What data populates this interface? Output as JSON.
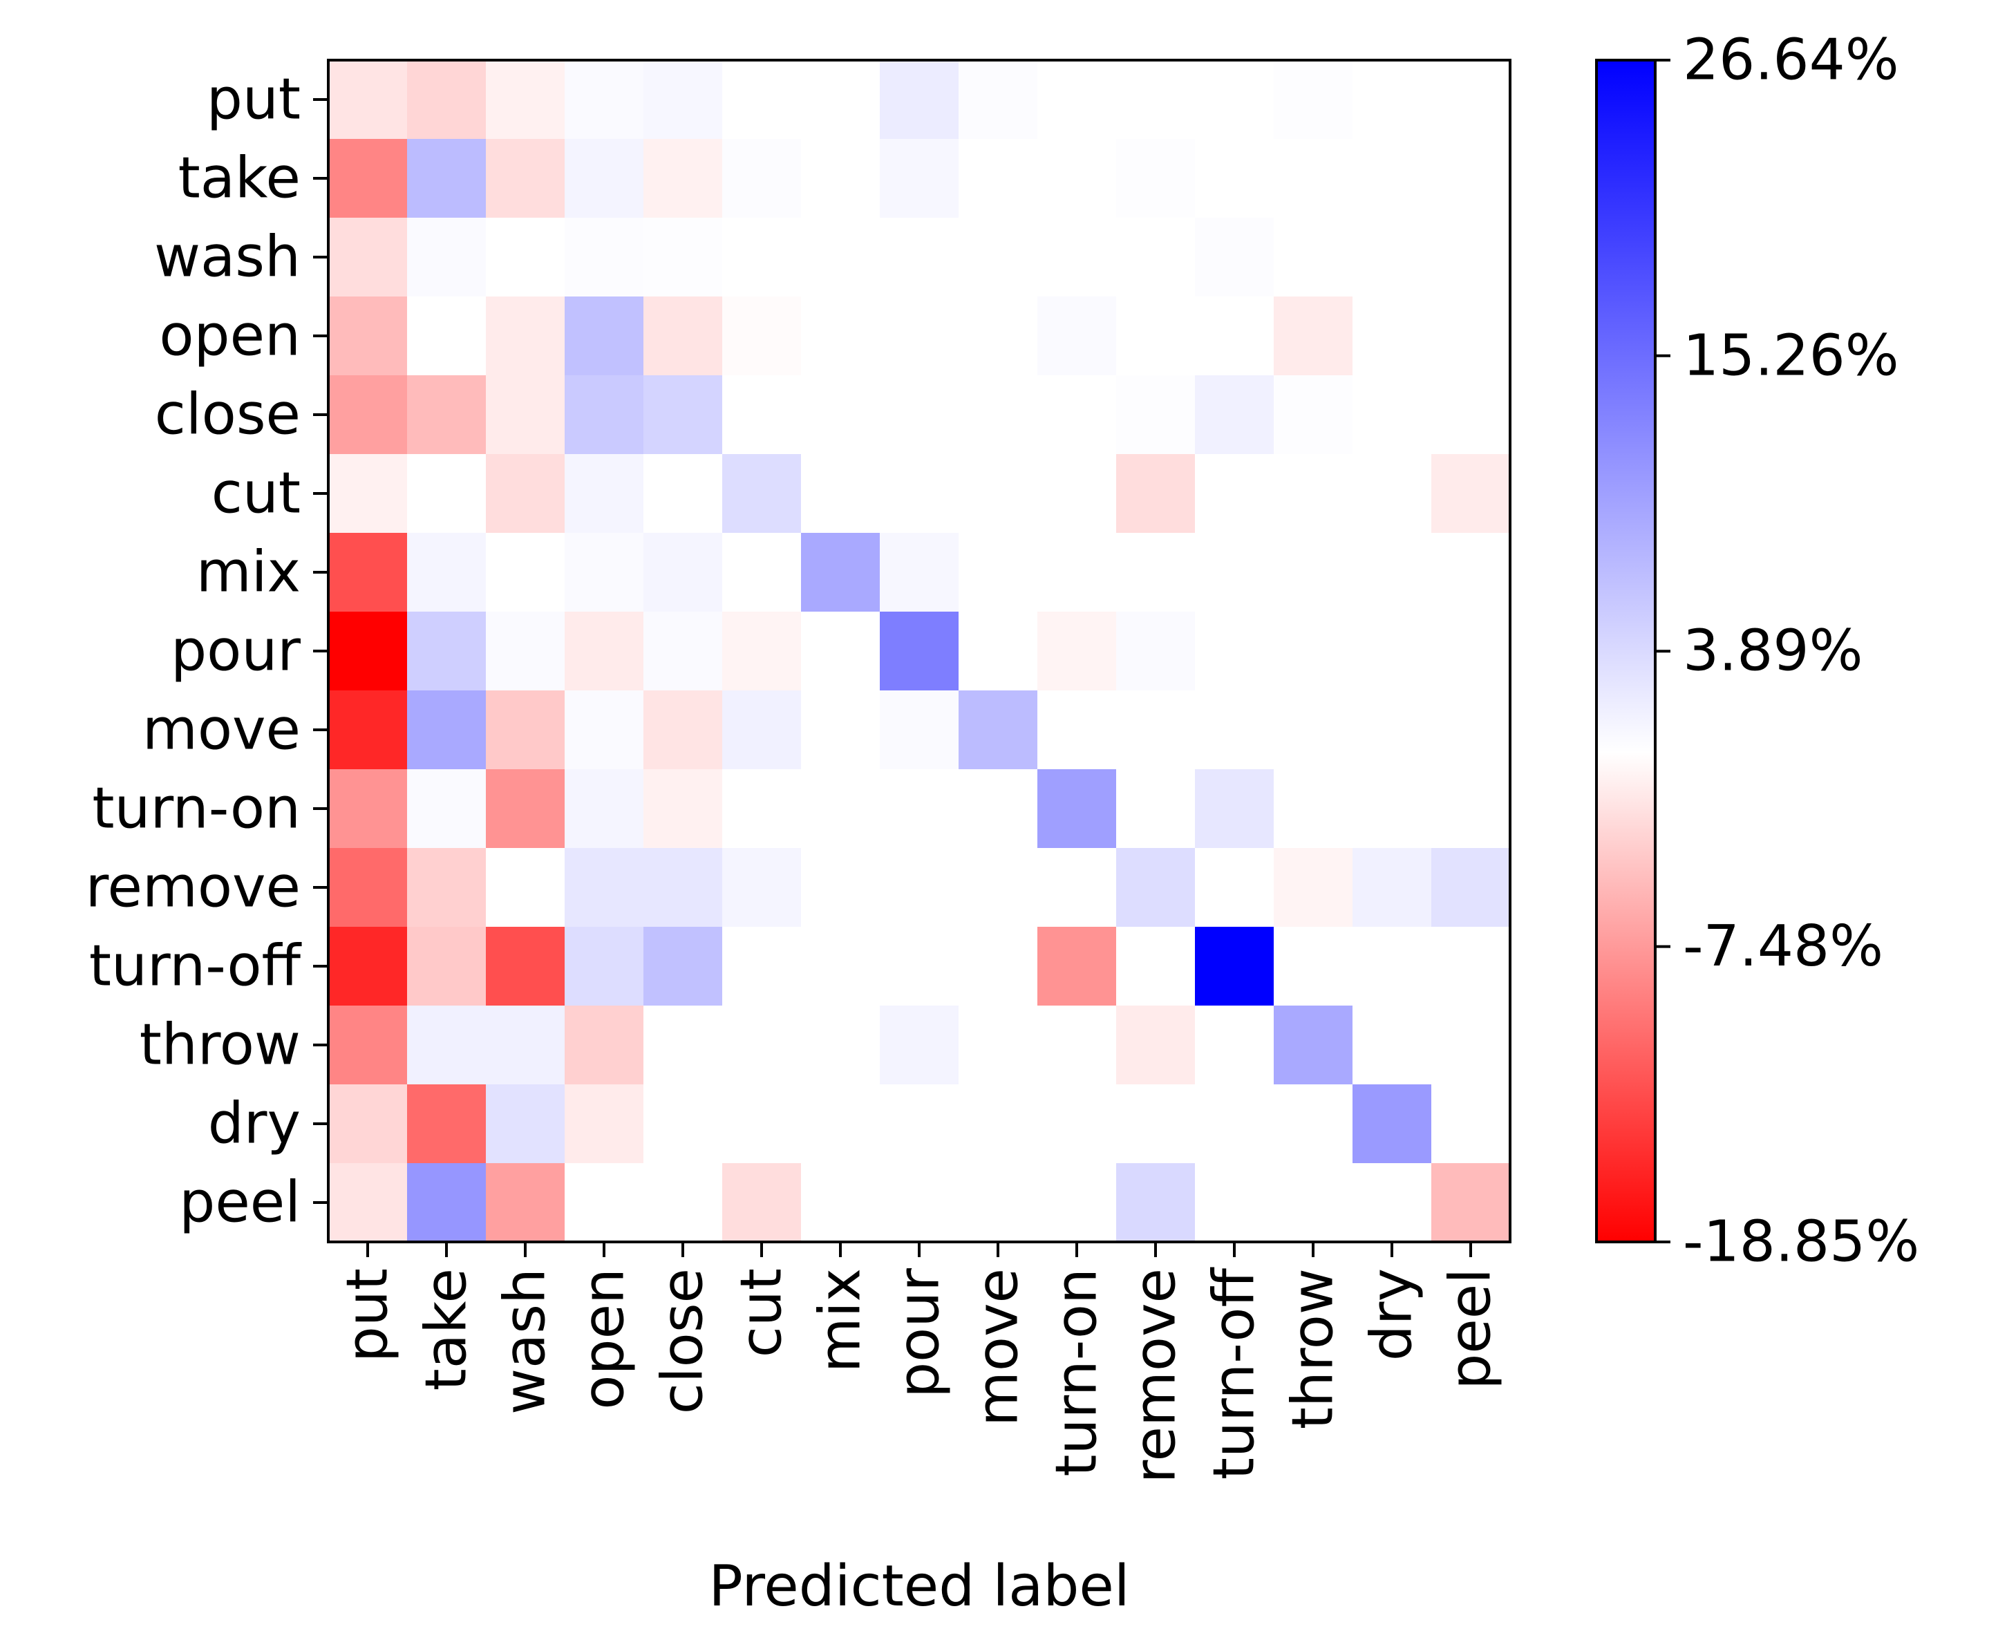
{
  "chart_data": {
    "type": "heatmap",
    "title": "",
    "xlabel": "Predicted label",
    "ylabel": "",
    "x_categories": [
      "put",
      "take",
      "wash",
      "open",
      "close",
      "cut",
      "mix",
      "pour",
      "move",
      "turn-on",
      "remove",
      "turn-off",
      "throw",
      "dry",
      "peel"
    ],
    "y_categories": [
      "put",
      "take",
      "wash",
      "open",
      "close",
      "cut",
      "mix",
      "pour",
      "move",
      "turn-on",
      "remove",
      "turn-off",
      "throw",
      "dry",
      "peel"
    ],
    "value_unit": "%",
    "colormap": {
      "low": "#ff0000",
      "mid": "#ffffff",
      "high": "#0000ff",
      "vmin": -18.85,
      "vmax": 26.64,
      "center": 0
    },
    "colorbar_ticks": [
      "26.64%",
      "15.26%",
      "3.89%",
      "-7.48%",
      "-18.85%"
    ],
    "colorbar_tick_values": [
      26.64,
      15.26,
      3.89,
      -7.48,
      -18.85
    ],
    "values": [
      [
        -2,
        -3,
        -1,
        0.5,
        0.8,
        0,
        0,
        2.0,
        0.3,
        0,
        0,
        0,
        0.2,
        0,
        0
      ],
      [
        -9,
        7,
        -2.5,
        1.2,
        -1,
        0.3,
        0,
        0.8,
        0,
        0,
        0.2,
        0,
        0,
        0,
        0
      ],
      [
        -2.5,
        0.5,
        0,
        0.3,
        0.2,
        0,
        0,
        0,
        0,
        0,
        0,
        0.3,
        0,
        0,
        0
      ],
      [
        -5,
        0,
        -1.5,
        6.5,
        -2,
        -0.3,
        0,
        0,
        0,
        0.5,
        0,
        0,
        -1.5,
        0,
        0
      ],
      [
        -7,
        -5,
        -1.5,
        5.5,
        4.5,
        0,
        0,
        0,
        0,
        0,
        0.2,
        1.5,
        0.2,
        0,
        0
      ],
      [
        -1,
        0,
        -2.5,
        1,
        0,
        3.5,
        0,
        0,
        0,
        0,
        -2.5,
        0,
        0,
        0,
        -1.5
      ],
      [
        -13,
        1,
        0,
        0.5,
        1,
        0,
        9,
        0.8,
        0,
        0,
        0,
        0,
        0,
        0,
        0
      ],
      [
        -18.85,
        5,
        0.5,
        -1.5,
        0.5,
        -0.8,
        0,
        13.5,
        0,
        -0.8,
        0.5,
        0,
        0,
        0,
        0
      ],
      [
        -16,
        9,
        -4,
        0.5,
        -2,
        1.5,
        0,
        0.5,
        7,
        0,
        0,
        0,
        0,
        0,
        0
      ],
      [
        -8,
        0.5,
        -8,
        1,
        -1,
        0,
        0,
        0,
        0,
        10,
        0,
        2.5,
        0,
        0,
        0
      ],
      [
        -11,
        -3.5,
        0,
        2.5,
        2.5,
        1,
        0,
        0,
        0,
        0,
        3.5,
        0,
        -0.8,
        1.5,
        3
      ],
      [
        -16,
        -4,
        -13,
        3.5,
        6.5,
        0,
        0,
        0,
        0,
        -8,
        0,
        26.64,
        0,
        0,
        0
      ],
      [
        -9,
        1.5,
        1.5,
        -3.5,
        0,
        0,
        0,
        1.2,
        0,
        0,
        -1.5,
        0,
        9,
        0,
        0
      ],
      [
        -3,
        -11,
        3,
        -1.5,
        0,
        0,
        0,
        0,
        0,
        0,
        0,
        0,
        0,
        10.5,
        0
      ],
      [
        -2,
        11,
        -7,
        0,
        0,
        -2.5,
        0,
        0,
        0,
        0,
        4,
        0,
        0,
        0,
        -5
      ]
    ]
  }
}
